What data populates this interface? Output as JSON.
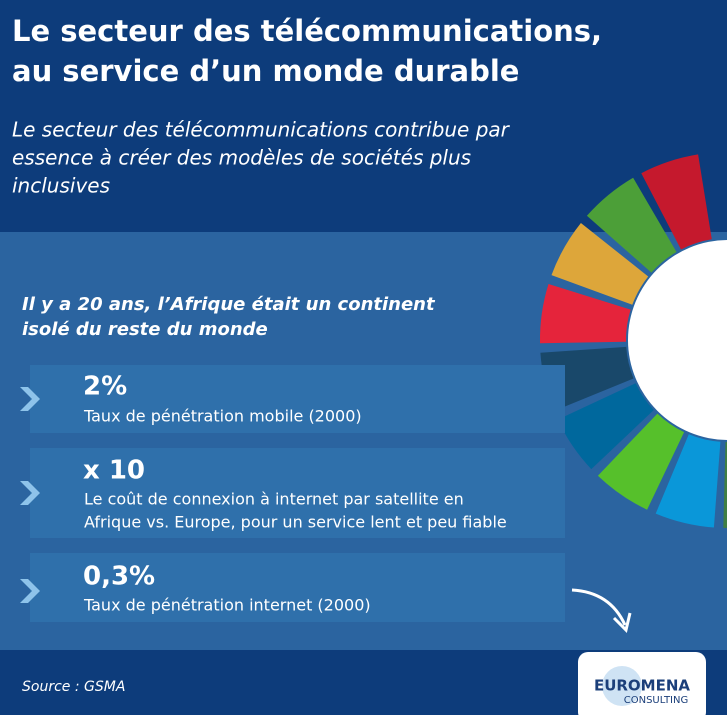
{
  "header": {
    "title": [
      "Le secteur des télécommunications,",
      "au service d’un monde durable"
    ],
    "subtitle": [
      "Le secteur des télécommunications contribue par",
      "essence à créer des modèles de sociétés plus",
      "inclusives"
    ]
  },
  "section": {
    "heading": [
      "Il y a 20 ans, l’Afrique était un continent",
      "isolé du reste du monde"
    ]
  },
  "stats": [
    {
      "value": "2%",
      "description": [
        "Taux de pénétration mobile (2000)"
      ]
    },
    {
      "value": "x 10",
      "description": [
        "Le coût de connexion à internet par satellite en",
        "Afrique vs. Europe, pour un service lent et peu fiable"
      ]
    },
    {
      "value": "0,3%",
      "description": [
        "Taux de pénétration internet (2000)"
      ]
    }
  ],
  "footer": {
    "source": "Source : GSMA",
    "logo": [
      "EUROMENA",
      "CONSULTING"
    ]
  }
}
